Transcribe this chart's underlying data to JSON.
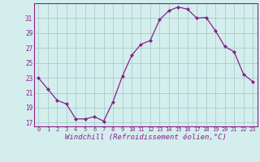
{
  "x": [
    0,
    1,
    2,
    3,
    4,
    5,
    6,
    7,
    8,
    9,
    10,
    11,
    12,
    13,
    14,
    15,
    16,
    17,
    18,
    19,
    20,
    21,
    22,
    23
  ],
  "y": [
    23,
    21.5,
    20,
    19.5,
    17.5,
    17.5,
    17.8,
    17.2,
    19.8,
    23.2,
    26.0,
    27.5,
    28.0,
    30.8,
    32.0,
    32.5,
    32.2,
    31.0,
    31.1,
    29.3,
    27.2,
    26.5,
    23.5,
    22.5
  ],
  "ylim": [
    16.5,
    33.0
  ],
  "yticks": [
    17,
    19,
    21,
    23,
    25,
    27,
    29,
    31
  ],
  "xlim": [
    -0.5,
    23.5
  ],
  "xticks": [
    0,
    1,
    2,
    3,
    4,
    5,
    6,
    7,
    8,
    9,
    10,
    11,
    12,
    13,
    14,
    15,
    16,
    17,
    18,
    19,
    20,
    21,
    22,
    23
  ],
  "xlabel": "Windchill (Refroidissement éolien,°C)",
  "line_color": "#882288",
  "marker": "D",
  "marker_size": 2.0,
  "bg_color": "#d4eeee",
  "grid_color": "#aacccc",
  "tick_fontsize": 5.0,
  "xlabel_fontsize": 6.5
}
